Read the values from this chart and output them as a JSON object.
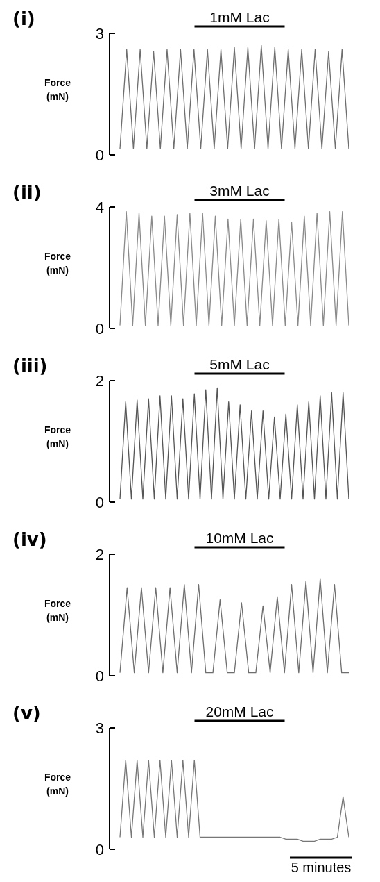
{
  "chart_data": [
    {
      "type": "line",
      "title": "(i)",
      "ylabel": "Force (mN)",
      "ylim": [
        0,
        3
      ],
      "yticks": [
        0,
        3
      ],
      "tick_labels": "y",
      "annotations": [
        "1mM Lac"
      ],
      "categories": [
        null,
        null,
        null,
        null,
        null,
        null,
        null,
        null,
        null,
        null,
        null,
        null,
        null,
        null,
        null,
        null,
        null,
        null,
        null,
        null,
        null,
        null,
        null,
        null,
        null,
        null,
        null,
        null,
        null,
        null,
        null,
        null,
        null,
        null,
        null
      ],
      "series": [
        {
          "color": "#6e6e6e",
          "values": [
            0.15,
            2.6,
            0.15,
            2.6,
            0.15,
            2.55,
            0.15,
            2.6,
            0.15,
            2.6,
            0.15,
            2.6,
            0.15,
            2.6,
            0.15,
            2.6,
            0.15,
            2.65,
            0.15,
            2.65,
            0.15,
            2.7,
            0.15,
            2.65,
            0.15,
            2.6,
            0.15,
            2.6,
            0.15,
            2.6,
            0.15,
            2.55,
            0.15,
            2.6,
            0.15
          ]
        }
      ]
    },
    {
      "type": "line",
      "title": "(ii)",
      "ylabel": "Force (mN)",
      "ylim": [
        0,
        4
      ],
      "yticks": [
        0,
        4
      ],
      "tick_labels": "y",
      "annotations": [
        "3mM Lac"
      ],
      "categories": [
        null,
        null,
        null,
        null,
        null,
        null,
        null,
        null,
        null,
        null,
        null,
        null,
        null,
        null,
        null,
        null,
        null,
        null,
        null,
        null,
        null,
        null,
        null,
        null,
        null,
        null,
        null,
        null,
        null,
        null,
        null,
        null,
        null,
        null,
        null,
        null,
        null
      ],
      "series": [
        {
          "color": "#8a8a8a",
          "values": [
            0.1,
            3.85,
            0.1,
            3.8,
            0.1,
            3.7,
            0.1,
            3.7,
            0.1,
            3.75,
            0.1,
            3.8,
            0.1,
            3.8,
            0.1,
            3.7,
            0.1,
            3.6,
            0.1,
            3.6,
            0.1,
            3.6,
            0.1,
            3.55,
            0.1,
            3.6,
            0.1,
            3.5,
            0.1,
            3.7,
            0.1,
            3.8,
            0.1,
            3.85,
            0.1,
            3.85,
            0.1
          ]
        }
      ]
    },
    {
      "type": "line",
      "title": "(iii)",
      "ylabel": "Force (mN)",
      "ylim": [
        0,
        2
      ],
      "yticks": [
        0,
        2
      ],
      "tick_labels": "y",
      "annotations": [
        "5mM Lac"
      ],
      "categories": [
        null,
        null,
        null,
        null,
        null,
        null,
        null,
        null,
        null,
        null,
        null,
        null,
        null,
        null,
        null,
        null,
        null,
        null,
        null,
        null,
        null,
        null,
        null,
        null,
        null,
        null,
        null,
        null,
        null,
        null,
        null,
        null,
        null,
        null,
        null,
        null,
        null,
        null,
        null,
        null,
        null
      ],
      "series": [
        {
          "color": "#555555",
          "values": [
            0.05,
            1.65,
            0.05,
            1.68,
            0.05,
            1.7,
            0.05,
            1.75,
            0.05,
            1.75,
            0.05,
            1.7,
            0.05,
            1.78,
            0.05,
            1.85,
            0.05,
            1.88,
            0.05,
            1.65,
            0.05,
            1.6,
            0.05,
            1.5,
            0.05,
            1.5,
            0.05,
            1.4,
            0.05,
            1.45,
            0.05,
            1.6,
            0.05,
            1.65,
            0.05,
            1.75,
            0.05,
            1.8,
            0.05,
            1.8,
            0.05
          ]
        }
      ]
    },
    {
      "type": "line",
      "title": "(iv)",
      "ylabel": "Force (mN)",
      "ylim": [
        0,
        2
      ],
      "yticks": [
        0,
        2
      ],
      "tick_labels": "y",
      "annotations": [
        "10mM Lac"
      ],
      "categories": [
        null,
        null,
        null,
        null,
        null,
        null,
        null,
        null,
        null,
        null,
        null,
        null,
        null,
        null,
        null,
        null,
        null,
        null,
        null,
        null,
        null,
        null,
        null,
        null,
        null,
        null,
        null,
        null,
        null,
        null,
        null,
        null,
        null
      ],
      "series": [
        {
          "color": "#6e6e6e",
          "values": [
            0.05,
            1.45,
            0.05,
            1.45,
            0.05,
            1.45,
            0.05,
            1.45,
            0.05,
            1.5,
            0.05,
            1.5,
            0.05,
            0.05,
            1.25,
            0.05,
            0.05,
            1.2,
            0.05,
            0.05,
            1.15,
            0.05,
            1.3,
            0.05,
            1.5,
            0.05,
            1.55,
            0.05,
            1.6,
            0.05,
            1.5,
            0.05,
            0.05
          ]
        }
      ]
    },
    {
      "type": "line",
      "title": "(v)",
      "ylabel": "Force (mN)",
      "ylim": [
        0,
        3
      ],
      "yticks": [
        0,
        3
      ],
      "tick_labels": "y",
      "annotations": [
        "20mM Lac",
        "5 minutes"
      ],
      "categories": [
        null,
        null,
        null,
        null,
        null,
        null,
        null,
        null,
        null,
        null,
        null,
        null,
        null,
        null,
        null,
        null,
        null,
        null,
        null,
        null,
        null,
        null,
        null,
        null,
        null,
        null,
        null,
        null,
        null,
        null,
        null,
        null,
        null,
        null,
        null,
        null,
        null,
        null,
        null,
        null,
        null
      ],
      "series": [
        {
          "color": "#777777",
          "values": [
            0.3,
            2.2,
            0.3,
            2.2,
            0.3,
            2.2,
            0.3,
            2.2,
            0.3,
            2.2,
            0.3,
            2.2,
            0.3,
            2.2,
            0.3,
            0.3,
            0.3,
            0.3,
            0.3,
            0.3,
            0.3,
            0.3,
            0.3,
            0.3,
            0.3,
            0.3,
            0.3,
            0.3,
            0.3,
            0.25,
            0.25,
            0.25,
            0.2,
            0.2,
            0.2,
            0.25,
            0.25,
            0.25,
            0.3,
            1.3,
            0.3
          ]
        }
      ]
    }
  ]
}
